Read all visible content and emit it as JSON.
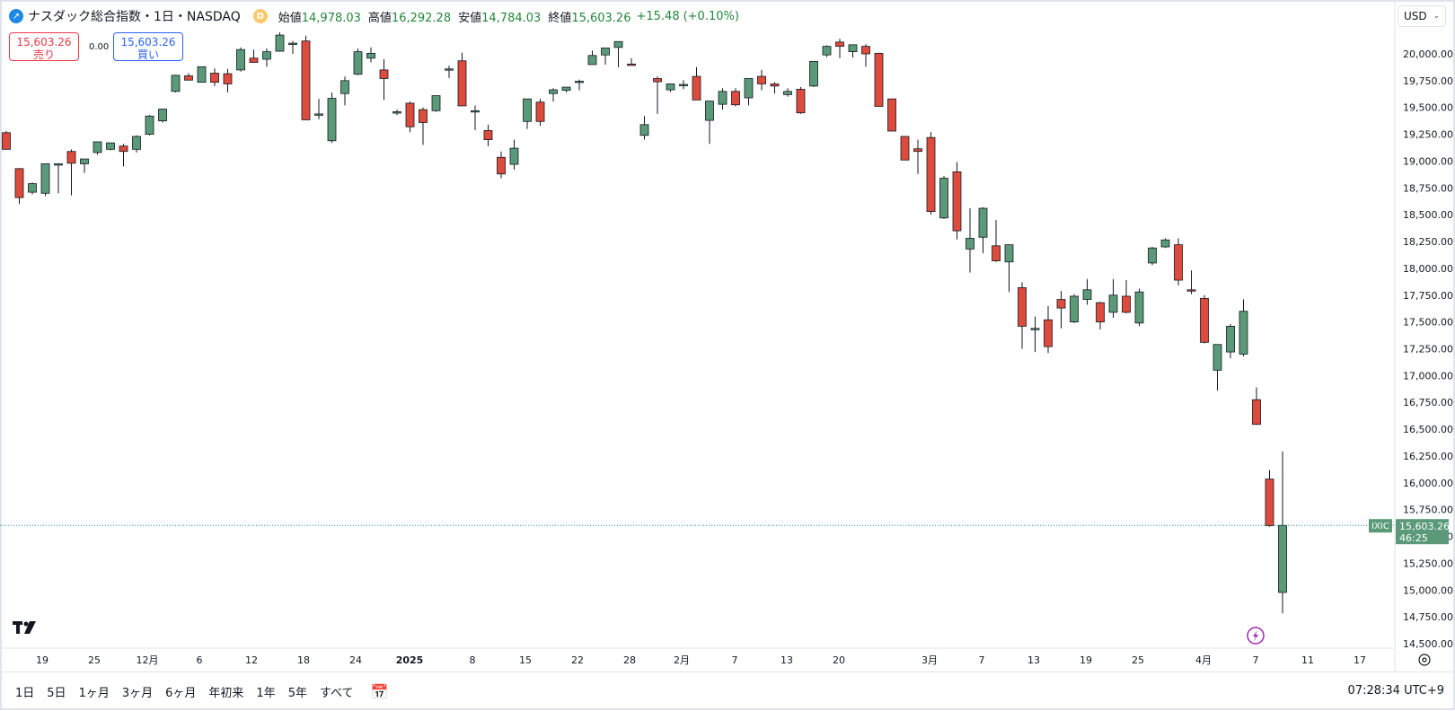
{
  "header": {
    "symbol_title": "ナスダック総合指数・1日・NASDAQ",
    "exchange_badge": "D",
    "ohlc": [
      {
        "label": "始値",
        "value": "14,978.03"
      },
      {
        "label": "高値",
        "value": "16,292.28"
      },
      {
        "label": "安値",
        "value": "14,784.03"
      },
      {
        "label": "終値",
        "value": "15,603.26"
      }
    ],
    "change": "+15.48",
    "change_pct": "(+0.10%)"
  },
  "trade": {
    "sell_price": "15,603.26",
    "sell_label": "売り",
    "spread": "0.00",
    "buy_price": "15,603.26",
    "buy_label": "買い"
  },
  "currency": "USD",
  "price_axis": [
    "20,000.00",
    "19,750.00",
    "19,500.00",
    "19,250.00",
    "19,000.00",
    "18,750.00",
    "18,500.00",
    "18,250.00",
    "18,000.00",
    "17,750.00",
    "17,500.00",
    "17,250.00",
    "17,000.00",
    "16,750.00",
    "16,500.00",
    "16,250.00",
    "16,000.00",
    "15,750.00",
    "15,500.00",
    "15,250.00",
    "15,000.00",
    "14,750.00",
    "14,500.00"
  ],
  "last_price_tag": {
    "symbol": "IXIC",
    "price": "15,603.26",
    "countdown": "46:25"
  },
  "time_axis": [
    "19",
    "25",
    "12月",
    "6",
    "12",
    "18",
    "24",
    "2025",
    "8",
    "15",
    "22",
    "28",
    "2月",
    "7",
    "13",
    "20",
    "3月",
    "7",
    "13",
    "19",
    "25",
    "4月",
    "7",
    "11",
    "17"
  ],
  "colors": {
    "up": "#5b9a78",
    "down": "#dc4b3c",
    "last_line": "#089981"
  },
  "chart_data": {
    "type": "candlestick",
    "series": [
      {
        "o": 19265,
        "h": 19280,
        "l": 19110,
        "c": 19110
      },
      {
        "o": 18930,
        "h": 18935,
        "l": 18600,
        "c": 18660
      },
      {
        "o": 18710,
        "h": 18800,
        "l": 18690,
        "c": 18790
      },
      {
        "o": 18700,
        "h": 18975,
        "l": 18675,
        "c": 18975
      },
      {
        "o": 18975,
        "h": 18980,
        "l": 18700,
        "c": 18975
      },
      {
        "o": 19090,
        "h": 19110,
        "l": 18680,
        "c": 18980
      },
      {
        "o": 18975,
        "h": 19020,
        "l": 18890,
        "c": 19020
      },
      {
        "o": 19080,
        "h": 19180,
        "l": 19060,
        "c": 19180
      },
      {
        "o": 19110,
        "h": 19170,
        "l": 19100,
        "c": 19170
      },
      {
        "o": 19140,
        "h": 19160,
        "l": 18950,
        "c": 19090
      },
      {
        "o": 19110,
        "h": 19240,
        "l": 19080,
        "c": 19230
      },
      {
        "o": 19250,
        "h": 19430,
        "l": 19240,
        "c": 19420
      },
      {
        "o": 19375,
        "h": 19485,
        "l": 19360,
        "c": 19485
      },
      {
        "o": 19650,
        "h": 19805,
        "l": 19640,
        "c": 19800
      },
      {
        "o": 19795,
        "h": 19820,
        "l": 19760,
        "c": 19755
      },
      {
        "o": 19735,
        "h": 19880,
        "l": 19735,
        "c": 19880
      },
      {
        "o": 19820,
        "h": 19865,
        "l": 19700,
        "c": 19735
      },
      {
        "o": 19815,
        "h": 19860,
        "l": 19640,
        "c": 19720
      },
      {
        "o": 19850,
        "h": 20060,
        "l": 19835,
        "c": 20040
      },
      {
        "o": 19960,
        "h": 20040,
        "l": 19920,
        "c": 19920
      },
      {
        "o": 19950,
        "h": 20050,
        "l": 19880,
        "c": 20020
      },
      {
        "o": 20025,
        "h": 20200,
        "l": 20020,
        "c": 20175
      },
      {
        "o": 20100,
        "h": 20120,
        "l": 20000,
        "c": 20100
      },
      {
        "o": 20120,
        "h": 20170,
        "l": 19390,
        "c": 19385
      },
      {
        "o": 19435,
        "h": 19580,
        "l": 19390,
        "c": 19440
      },
      {
        "o": 19190,
        "h": 19640,
        "l": 19170,
        "c": 19585
      },
      {
        "o": 19630,
        "h": 19790,
        "l": 19520,
        "c": 19750
      },
      {
        "o": 19810,
        "h": 20050,
        "l": 19800,
        "c": 20020
      },
      {
        "o": 19960,
        "h": 20060,
        "l": 19920,
        "c": 20005
      },
      {
        "o": 19850,
        "h": 19950,
        "l": 19570,
        "c": 19770
      },
      {
        "o": 19455,
        "h": 19480,
        "l": 19430,
        "c": 19460
      },
      {
        "o": 19540,
        "h": 19555,
        "l": 19270,
        "c": 19320
      },
      {
        "o": 19480,
        "h": 19500,
        "l": 19150,
        "c": 19360
      },
      {
        "o": 19470,
        "h": 19610,
        "l": 19460,
        "c": 19610
      },
      {
        "o": 19850,
        "h": 19890,
        "l": 19775,
        "c": 19860
      },
      {
        "o": 19935,
        "h": 20010,
        "l": 19520,
        "c": 19515
      },
      {
        "o": 19465,
        "h": 19520,
        "l": 19290,
        "c": 19470
      },
      {
        "o": 19285,
        "h": 19340,
        "l": 19140,
        "c": 19200
      },
      {
        "o": 19035,
        "h": 19090,
        "l": 18840,
        "c": 18880
      },
      {
        "o": 18970,
        "h": 19200,
        "l": 18920,
        "c": 19120
      },
      {
        "o": 19370,
        "h": 19420,
        "l": 19300,
        "c": 19580
      },
      {
        "o": 19550,
        "h": 19580,
        "l": 19330,
        "c": 19370
      },
      {
        "o": 19630,
        "h": 19680,
        "l": 19555,
        "c": 19665
      },
      {
        "o": 19660,
        "h": 19690,
        "l": 19640,
        "c": 19690
      },
      {
        "o": 19745,
        "h": 19760,
        "l": 19660,
        "c": 19745
      },
      {
        "o": 19900,
        "h": 20030,
        "l": 19900,
        "c": 19985
      },
      {
        "o": 19990,
        "h": 20050,
        "l": 19900,
        "c": 20055
      },
      {
        "o": 20060,
        "h": 20110,
        "l": 19875,
        "c": 20115
      },
      {
        "o": 19905,
        "h": 19960,
        "l": 19900,
        "c": 19900
      },
      {
        "o": 19240,
        "h": 19420,
        "l": 19200,
        "c": 19340
      },
      {
        "o": 19770,
        "h": 19790,
        "l": 19440,
        "c": 19740
      },
      {
        "o": 19665,
        "h": 19720,
        "l": 19645,
        "c": 19720
      },
      {
        "o": 19715,
        "h": 19755,
        "l": 19670,
        "c": 19715
      },
      {
        "o": 19790,
        "h": 19875,
        "l": 19610,
        "c": 19570
      },
      {
        "o": 19380,
        "h": 19470,
        "l": 19160,
        "c": 19560
      },
      {
        "o": 19530,
        "h": 19680,
        "l": 19480,
        "c": 19650
      },
      {
        "o": 19650,
        "h": 19680,
        "l": 19510,
        "c": 19525
      },
      {
        "o": 19590,
        "h": 19730,
        "l": 19520,
        "c": 19770
      },
      {
        "o": 19790,
        "h": 19850,
        "l": 19660,
        "c": 19720
      },
      {
        "o": 19720,
        "h": 19735,
        "l": 19630,
        "c": 19700
      },
      {
        "o": 19620,
        "h": 19680,
        "l": 19600,
        "c": 19650
      },
      {
        "o": 19670,
        "h": 19690,
        "l": 19440,
        "c": 19450
      },
      {
        "o": 19700,
        "h": 19930,
        "l": 19690,
        "c": 19930
      },
      {
        "o": 19990,
        "h": 20080,
        "l": 19970,
        "c": 20070
      },
      {
        "o": 20110,
        "h": 20140,
        "l": 19960,
        "c": 20070
      },
      {
        "o": 20020,
        "h": 20070,
        "l": 19965,
        "c": 20085
      },
      {
        "o": 20070,
        "h": 20090,
        "l": 19880,
        "c": 20000
      },
      {
        "o": 20005,
        "h": 20010,
        "l": 19520,
        "c": 19510
      },
      {
        "o": 19580,
        "h": 19580,
        "l": 19290,
        "c": 19280
      },
      {
        "o": 19230,
        "h": 19230,
        "l": 19010,
        "c": 19010
      },
      {
        "o": 19115,
        "h": 19200,
        "l": 18880,
        "c": 19090
      },
      {
        "o": 19220,
        "h": 19270,
        "l": 18500,
        "c": 18530
      },
      {
        "o": 18470,
        "h": 18860,
        "l": 18460,
        "c": 18840
      },
      {
        "o": 18900,
        "h": 18990,
        "l": 18270,
        "c": 18350
      },
      {
        "o": 18180,
        "h": 18560,
        "l": 17960,
        "c": 18280
      },
      {
        "o": 18290,
        "h": 18570,
        "l": 18140,
        "c": 18560
      },
      {
        "o": 18210,
        "h": 18450,
        "l": 18060,
        "c": 18070
      },
      {
        "o": 18060,
        "h": 18220,
        "l": 17780,
        "c": 18220
      },
      {
        "o": 17820,
        "h": 17870,
        "l": 17250,
        "c": 17460
      },
      {
        "o": 17440,
        "h": 17550,
        "l": 17220,
        "c": 17440
      },
      {
        "o": 17520,
        "h": 17650,
        "l": 17210,
        "c": 17270
      },
      {
        "o": 17710,
        "h": 17790,
        "l": 17440,
        "c": 17630
      },
      {
        "o": 17500,
        "h": 17760,
        "l": 17490,
        "c": 17740
      },
      {
        "o": 17710,
        "h": 17900,
        "l": 17660,
        "c": 17800
      },
      {
        "o": 17680,
        "h": 17690,
        "l": 17430,
        "c": 17500
      },
      {
        "o": 17590,
        "h": 17900,
        "l": 17540,
        "c": 17750
      },
      {
        "o": 17740,
        "h": 17890,
        "l": 17580,
        "c": 17590
      },
      {
        "o": 17490,
        "h": 17810,
        "l": 17460,
        "c": 17780
      },
      {
        "o": 18050,
        "h": 18200,
        "l": 18030,
        "c": 18190
      },
      {
        "o": 18200,
        "h": 18280,
        "l": 18190,
        "c": 18265
      },
      {
        "o": 18220,
        "h": 18280,
        "l": 17840,
        "c": 17890
      },
      {
        "o": 17800,
        "h": 17980,
        "l": 17760,
        "c": 17790
      },
      {
        "o": 17720,
        "h": 17750,
        "l": 17300,
        "c": 17310
      },
      {
        "o": 17050,
        "h": 17290,
        "l": 16860,
        "c": 17290
      },
      {
        "o": 17220,
        "h": 17480,
        "l": 17160,
        "c": 17460
      },
      {
        "o": 17200,
        "h": 17710,
        "l": 17180,
        "c": 17600
      },
      {
        "o": 16775,
        "h": 16890,
        "l": 16540,
        "c": 16545
      },
      {
        "o": 16035,
        "h": 16120,
        "l": 15590,
        "c": 15600
      },
      {
        "o": 14978,
        "h": 16292,
        "l": 14784,
        "c": 15603
      }
    ]
  }
}
